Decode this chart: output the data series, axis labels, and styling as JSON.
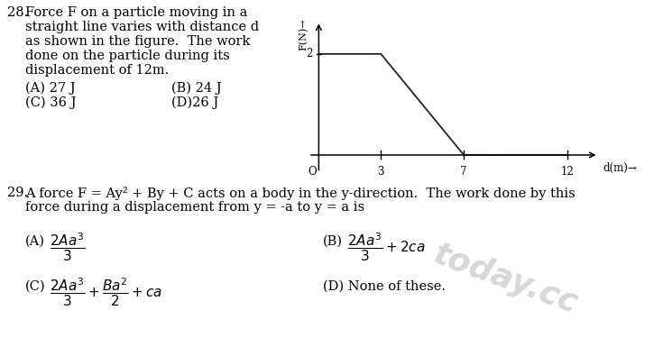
{
  "bg_color": "#ffffff",
  "q28_number": "28.",
  "q28_text_lines": [
    "Force F on a particle moving in a",
    "straight line varies with distance d",
    "as shown in the figure.  The work",
    "done on the particle during its",
    "displacement of 12m."
  ],
  "q28_options": [
    [
      "(A) 27 J",
      "(B) 24 J"
    ],
    [
      "(C) 36 J",
      "(D)26 J"
    ]
  ],
  "graph_xpoints": [
    0,
    3,
    7,
    12
  ],
  "graph_ypoints": [
    2,
    2,
    0,
    0
  ],
  "graph_ytick_label": "2",
  "graph_xlabel": "d(m)→",
  "graph_ylabel": "F(N)→",
  "q29_number": "29.",
  "q29_line1": "A force F = Ay² + By + C acts on a body in the y-direction.  The work done by this",
  "q29_line2": "force during a displacement from y = -a to y = a is",
  "q29_options_D": "(D) None of these.",
  "watermark": "today.cc",
  "font_color": "#000000",
  "watermark_color": "#b0b0b0",
  "fig_width": 7.25,
  "fig_height": 3.85,
  "fig_dpi": 100
}
